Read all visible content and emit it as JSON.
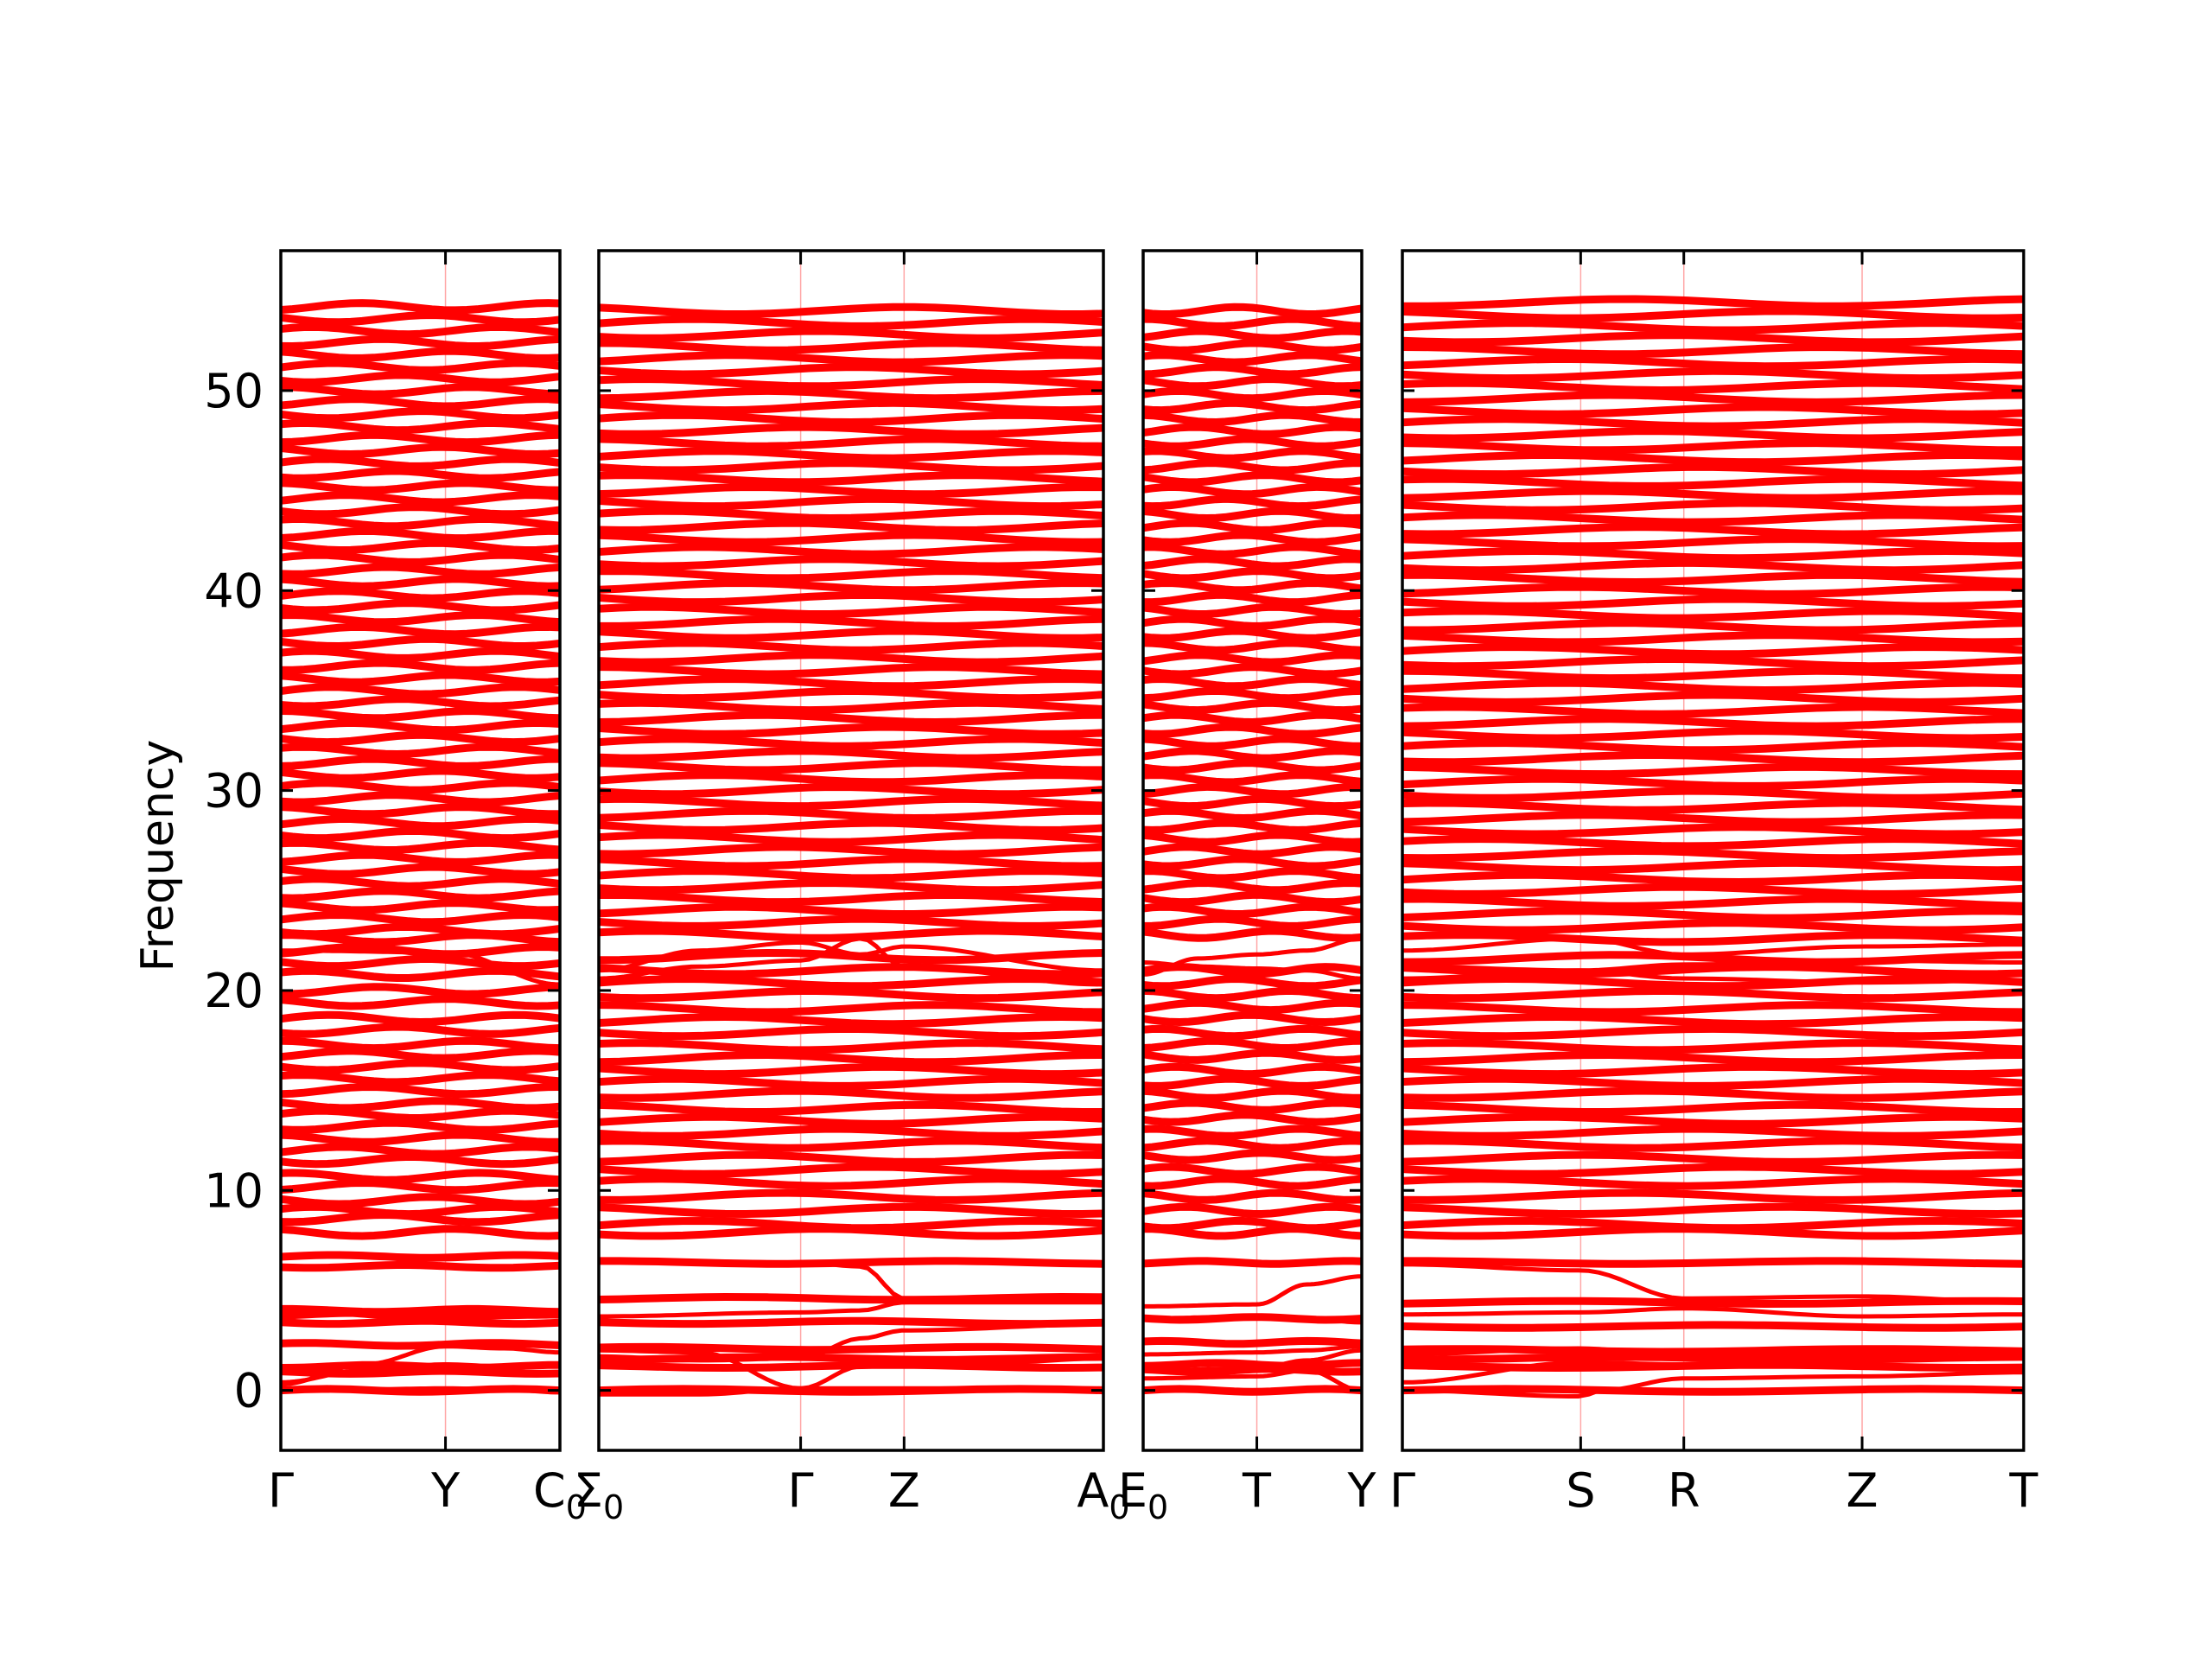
{
  "chart_data": {
    "type": "line",
    "ylabel": "Frequency",
    "ylim": [
      -3,
      57
    ],
    "yticks": [
      0,
      10,
      20,
      30,
      40,
      50
    ],
    "grid": false,
    "line_color": "#ff0000",
    "zero_line_color": "#00008b",
    "panels": [
      {
        "id": "panel-1",
        "ticks": [
          {
            "label": "Γ",
            "t": 0
          },
          {
            "label": "Y",
            "t": 0.59
          },
          {
            "label": "C",
            "sub": "0",
            "t": 1
          }
        ],
        "flat_bands": [
          0.0,
          0.9,
          1.2,
          2.3,
          3.4,
          3.8,
          4.0,
          6.2,
          6.7,
          7.9,
          8.6,
          9.0,
          9.5,
          10.2,
          10.7,
          11.5,
          12.0,
          12.6,
          13.2,
          13.8,
          14.3,
          15.0,
          15.6,
          16.2,
          16.8,
          17.3,
          18.0,
          18.6,
          19.4,
          20.0,
          20.8,
          21.4,
          22.0,
          22.6,
          23.0,
          23.6,
          24.2,
          24.8,
          25.4,
          26.0,
          26.6,
          27.2,
          27.8,
          28.4,
          29.0,
          29.6,
          30.2,
          30.8,
          31.4,
          32.0,
          32.6,
          33.2,
          33.8,
          34.4,
          35.0,
          35.6,
          36.2,
          36.8,
          37.4,
          38.0,
          38.6,
          39.2,
          39.8,
          40.4,
          41.0,
          41.6,
          42.2,
          42.8,
          43.4,
          44.0,
          44.6,
          45.2,
          45.8,
          46.4,
          47.0,
          47.6,
          48.2,
          48.8,
          49.4,
          50.0,
          50.6,
          51.2,
          51.8,
          52.4,
          53.0,
          53.6,
          54.2
        ],
        "curves": [
          {
            "t": [
              0,
              0.3,
              0.59,
              0.8,
              1
            ],
            "y": [
              0.0,
              0.05,
              0.1,
              0.05,
              -0.1
            ]
          },
          {
            "t": [
              0,
              0.3,
              0.59,
              0.8,
              1
            ],
            "y": [
              0.3,
              1.3,
              2.2,
              2.1,
              1.9
            ]
          },
          {
            "t": [
              0,
              0.3,
              0.59,
              0.8,
              1
            ],
            "y": [
              0.4,
              1.0,
              1.3,
              1.2,
              1.2
            ]
          },
          {
            "t": [
              0,
              0.5,
              1
            ],
            "y": [
              4.0,
              3.6,
              3.7
            ]
          },
          {
            "t": [
              0,
              0.6,
              1
            ],
            "y": [
              22.0,
              21.9,
              20.3
            ]
          }
        ]
      },
      {
        "id": "panel-2",
        "ticks": [
          {
            "label": "Σ",
            "sub": "0",
            "t": 0
          },
          {
            "label": "Γ",
            "t": 0.4
          },
          {
            "label": "Z",
            "t": 0.605
          },
          {
            "label": "A",
            "sub": "0",
            "t": 1
          }
        ],
        "flat_bands": [
          0.0,
          1.2,
          1.6,
          2.1,
          3.4,
          4.6,
          6.4,
          7.9,
          8.3,
          9.0,
          9.7,
          10.4,
          11.0,
          11.6,
          12.3,
          12.9,
          13.5,
          14.1,
          14.8,
          15.4,
          16.0,
          16.6,
          17.2,
          17.9,
          18.5,
          19.1,
          19.8,
          20.4,
          21.0,
          21.7,
          22.8,
          23.4,
          24.0,
          24.6,
          25.2,
          25.8,
          26.4,
          27.0,
          27.6,
          28.2,
          28.8,
          29.4,
          30.0,
          30.6,
          31.2,
          31.8,
          32.4,
          33.0,
          33.6,
          34.2,
          34.8,
          35.4,
          36.0,
          36.6,
          37.2,
          37.8,
          38.4,
          39.0,
          39.6,
          40.2,
          40.8,
          41.4,
          42.0,
          42.6,
          43.2,
          43.8,
          44.4,
          45.0,
          45.6,
          46.2,
          46.8,
          47.4,
          48.0,
          48.6,
          49.2,
          49.8,
          50.4,
          51.0,
          51.6,
          52.2,
          52.8,
          53.4,
          54.0
        ],
        "curves": [
          {
            "t": [
              0,
              0.2,
              0.4
            ],
            "y": [
              -0.2,
              -0.2,
              0.1
            ]
          },
          {
            "t": [
              0,
              0.2,
              0.4,
              0.52,
              0.605,
              0.8,
              1
            ],
            "y": [
              2.0,
              1.9,
              0.1,
              1.2,
              1.4,
              1.4,
              1.6
            ]
          },
          {
            "t": [
              0,
              0.2,
              0.4,
              0.52,
              0.605,
              1
            ],
            "y": [
              1.7,
              1.5,
              1.6,
              2.6,
              3.0,
              3.3
            ]
          },
          {
            "t": [
              0,
              0.4,
              0.52,
              0.605,
              1
            ],
            "y": [
              3.7,
              3.9,
              4.0,
              4.4,
              4.4
            ]
          },
          {
            "t": [
              0,
              0.4,
              0.52,
              0.605,
              1
            ],
            "y": [
              6.5,
              6.4,
              6.2,
              4.6,
              4.5
            ]
          },
          {
            "t": [
              0,
              0.2,
              0.4,
              0.52,
              0.605,
              1
            ],
            "y": [
              21.0,
              22.0,
              22.4,
              21.8,
              22.2,
              21.0
            ]
          },
          {
            "t": [
              0,
              0.2,
              0.4,
              0.52,
              0.605,
              1
            ],
            "y": [
              20.6,
              21.2,
              21.5,
              22.6,
              21.2,
              20.3
            ]
          }
        ]
      },
      {
        "id": "panel-3",
        "ticks": [
          {
            "label": "E",
            "sub": "0",
            "t": 0
          },
          {
            "label": "T",
            "t": 0.52
          },
          {
            "label": "Y",
            "t": 1
          }
        ],
        "flat_bands": [
          0.0,
          1.0,
          1.3,
          2.4,
          3.6,
          6.4,
          7.9,
          8.3,
          9.0,
          9.7,
          10.4,
          11.0,
          11.7,
          12.3,
          12.9,
          13.6,
          14.2,
          14.8,
          15.4,
          16.0,
          16.7,
          17.3,
          17.9,
          18.6,
          19.2,
          19.8,
          20.4,
          21.0,
          22.8,
          23.4,
          24.0,
          24.6,
          25.2,
          25.8,
          26.4,
          27.0,
          27.6,
          28.2,
          28.8,
          29.4,
          30.0,
          30.6,
          31.2,
          31.8,
          32.4,
          33.0,
          33.6,
          34.2,
          34.8,
          35.4,
          36.0,
          36.6,
          37.2,
          37.8,
          38.4,
          39.0,
          39.6,
          40.2,
          40.8,
          41.4,
          42.0,
          42.6,
          43.2,
          43.8,
          44.4,
          45.0,
          45.6,
          46.2,
          46.8,
          47.4,
          48.0,
          48.6,
          49.2,
          49.8,
          50.4,
          51.0,
          51.6,
          52.2,
          52.8,
          53.4,
          54.0
        ],
        "curves": [
          {
            "t": [
              0,
              0.52,
              0.75,
              1
            ],
            "y": [
              4.2,
              4.3,
              5.3,
              5.7
            ]
          },
          {
            "t": [
              0,
              0.52,
              0.75,
              1
            ],
            "y": [
              3.6,
              3.7,
              3.6,
              3.4
            ]
          },
          {
            "t": [
              0,
              0.52,
              0.75,
              1
            ],
            "y": [
              1.8,
              1.9,
              2.0,
              2.2
            ]
          },
          {
            "t": [
              0,
              0.52,
              0.75,
              1
            ],
            "y": [
              1.0,
              1.1,
              1.5,
              2.0
            ]
          },
          {
            "t": [
              0,
              0.52,
              0.75,
              1
            ],
            "y": [
              0.6,
              0.7,
              1.0,
              0.0
            ]
          },
          {
            "t": [
              0,
              0.25,
              0.52,
              0.75,
              1
            ],
            "y": [
              20.8,
              21.6,
              21.8,
              22.0,
              22.6
            ]
          },
          {
            "t": [
              0,
              0.25,
              0.52,
              0.75,
              1
            ],
            "y": [
              21.4,
              21.2,
              21.1,
              21.0,
              20.6
            ]
          }
        ]
      },
      {
        "id": "panel-4",
        "ticks": [
          {
            "label": "Γ",
            "t": 0
          },
          {
            "label": "S",
            "t": 0.287
          },
          {
            "label": "R",
            "t": 0.453
          },
          {
            "label": "Z",
            "t": 0.74
          },
          {
            "label": "T",
            "t": 1
          }
        ],
        "flat_bands": [
          0.0,
          1.2,
          1.6,
          2.0,
          3.2,
          4.4,
          6.4,
          7.9,
          8.3,
          9.0,
          9.7,
          10.4,
          11.0,
          11.6,
          12.3,
          12.9,
          13.5,
          14.1,
          14.8,
          15.4,
          16.0,
          16.6,
          17.2,
          17.9,
          18.5,
          19.1,
          19.8,
          20.4,
          21.0,
          21.6,
          22.6,
          23.2,
          23.8,
          24.4,
          25.0,
          25.6,
          26.2,
          26.8,
          27.4,
          28.0,
          28.6,
          29.2,
          29.8,
          30.4,
          31.0,
          31.6,
          32.2,
          32.8,
          33.4,
          34.0,
          34.6,
          35.2,
          35.8,
          36.4,
          37.0,
          37.6,
          38.2,
          38.8,
          39.4,
          40.0,
          40.6,
          41.2,
          41.8,
          42.4,
          43.0,
          43.6,
          44.2,
          44.8,
          45.4,
          46.0,
          46.6,
          47.2,
          47.8,
          48.4,
          49.0,
          49.6,
          50.2,
          50.8,
          51.4,
          52.0,
          52.6,
          53.2,
          53.8,
          54.4
        ],
        "curves": [
          {
            "t": [
              0,
              0.287,
              0.32,
              0.453,
              0.74,
              1
            ],
            "y": [
              0.0,
              -0.3,
              0.0,
              0.6,
              0.7,
              0.9
            ]
          },
          {
            "t": [
              0,
              0.287,
              0.453,
              0.74,
              1
            ],
            "y": [
              0.4,
              1.4,
              1.3,
              1.2,
              1.2
            ]
          },
          {
            "t": [
              0,
              0.287,
              0.453,
              0.74,
              1
            ],
            "y": [
              1.8,
              2.1,
              1.7,
              1.8,
              2.0
            ]
          },
          {
            "t": [
              0,
              0.287,
              0.453,
              0.74,
              1
            ],
            "y": [
              3.8,
              3.9,
              4.1,
              3.7,
              3.8
            ]
          },
          {
            "t": [
              0,
              0.287,
              0.453,
              0.74,
              1
            ],
            "y": [
              6.3,
              6.0,
              4.6,
              4.7,
              4.4
            ]
          },
          {
            "t": [
              0,
              0.287,
              0.453,
              0.74,
              1
            ],
            "y": [
              21.2,
              21.0,
              20.6,
              20.4,
              20.5
            ]
          },
          {
            "t": [
              0,
              0.287,
              0.453,
              0.74,
              1
            ],
            "y": [
              22.0,
              22.6,
              21.8,
              22.2,
              22.3
            ]
          },
          {
            "t": [
              0,
              0.287,
              0.453,
              0.74,
              1
            ],
            "y": [
              20.6,
              21.0,
              21.3,
              21.5,
              21.4
            ]
          }
        ]
      }
    ]
  }
}
